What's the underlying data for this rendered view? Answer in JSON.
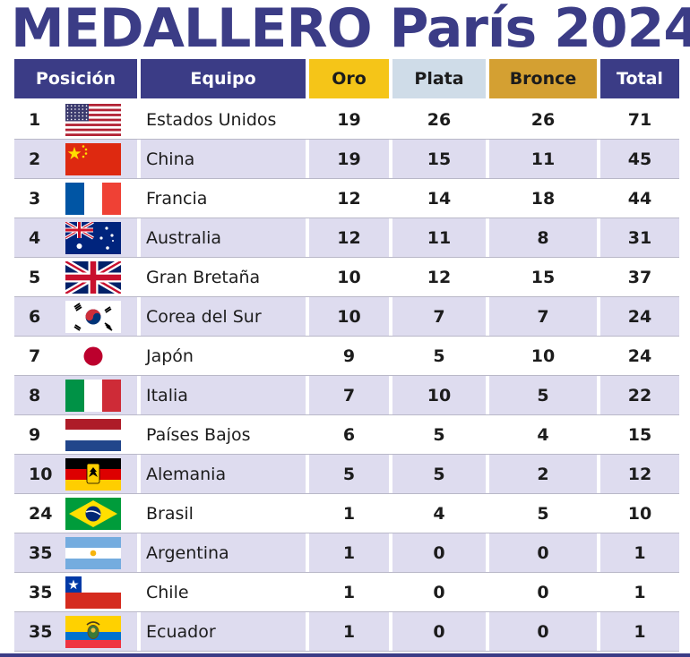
{
  "title": "MEDALLERO París 2024",
  "colors": {
    "navy": "#3b3c86",
    "gold": "#f5c518",
    "silver": "#cfdce8",
    "bronze": "#d4a032",
    "row_shade": "#dedcef"
  },
  "headers": {
    "position": "Posición",
    "team": "Equipo",
    "gold": "Oro",
    "silver": "Plata",
    "bronze": "Bronce",
    "total": "Total"
  },
  "rows": [
    {
      "position": "1",
      "flag": "usa-flag-icon",
      "team": "Estados Unidos",
      "gold": "19",
      "silver": "26",
      "bronze": "26",
      "total": "71"
    },
    {
      "position": "2",
      "flag": "china-flag-icon",
      "team": "China",
      "gold": "19",
      "silver": "15",
      "bronze": "11",
      "total": "45"
    },
    {
      "position": "3",
      "flag": "france-flag-icon",
      "team": "Francia",
      "gold": "12",
      "silver": "14",
      "bronze": "18",
      "total": "44"
    },
    {
      "position": "4",
      "flag": "australia-flag-icon",
      "team": "Australia",
      "gold": "12",
      "silver": "11",
      "bronze": "8",
      "total": "31"
    },
    {
      "position": "5",
      "flag": "uk-flag-icon",
      "team": "Gran Bretaña",
      "gold": "10",
      "silver": "12",
      "bronze": "15",
      "total": "37"
    },
    {
      "position": "6",
      "flag": "south-korea-flag-icon",
      "team": "Corea del Sur",
      "gold": "10",
      "silver": "7",
      "bronze": "7",
      "total": "24"
    },
    {
      "position": "7",
      "flag": "japan-flag-icon",
      "team": "Japón",
      "gold": "9",
      "silver": "5",
      "bronze": "10",
      "total": "24"
    },
    {
      "position": "8",
      "flag": "italy-flag-icon",
      "team": "Italia",
      "gold": "7",
      "silver": "10",
      "bronze": "5",
      "total": "22"
    },
    {
      "position": "9",
      "flag": "netherlands-flag-icon",
      "team": "Países Bajos",
      "gold": "6",
      "silver": "5",
      "bronze": "4",
      "total": "15"
    },
    {
      "position": "10",
      "flag": "germany-flag-icon",
      "team": "Alemania",
      "gold": "5",
      "silver": "5",
      "bronze": "2",
      "total": "12"
    },
    {
      "position": "24",
      "flag": "brazil-flag-icon",
      "team": "Brasil",
      "gold": "1",
      "silver": "4",
      "bronze": "5",
      "total": "10"
    },
    {
      "position": "35",
      "flag": "argentina-flag-icon",
      "team": "Argentina",
      "gold": "1",
      "silver": "0",
      "bronze": "0",
      "total": "1"
    },
    {
      "position": "35",
      "flag": "chile-flag-icon",
      "team": "Chile",
      "gold": "1",
      "silver": "0",
      "bronze": "0",
      "total": "1"
    },
    {
      "position": "35",
      "flag": "ecuador-flag-icon",
      "team": "Ecuador",
      "gold": "1",
      "silver": "0",
      "bronze": "0",
      "total": "1"
    }
  ]
}
